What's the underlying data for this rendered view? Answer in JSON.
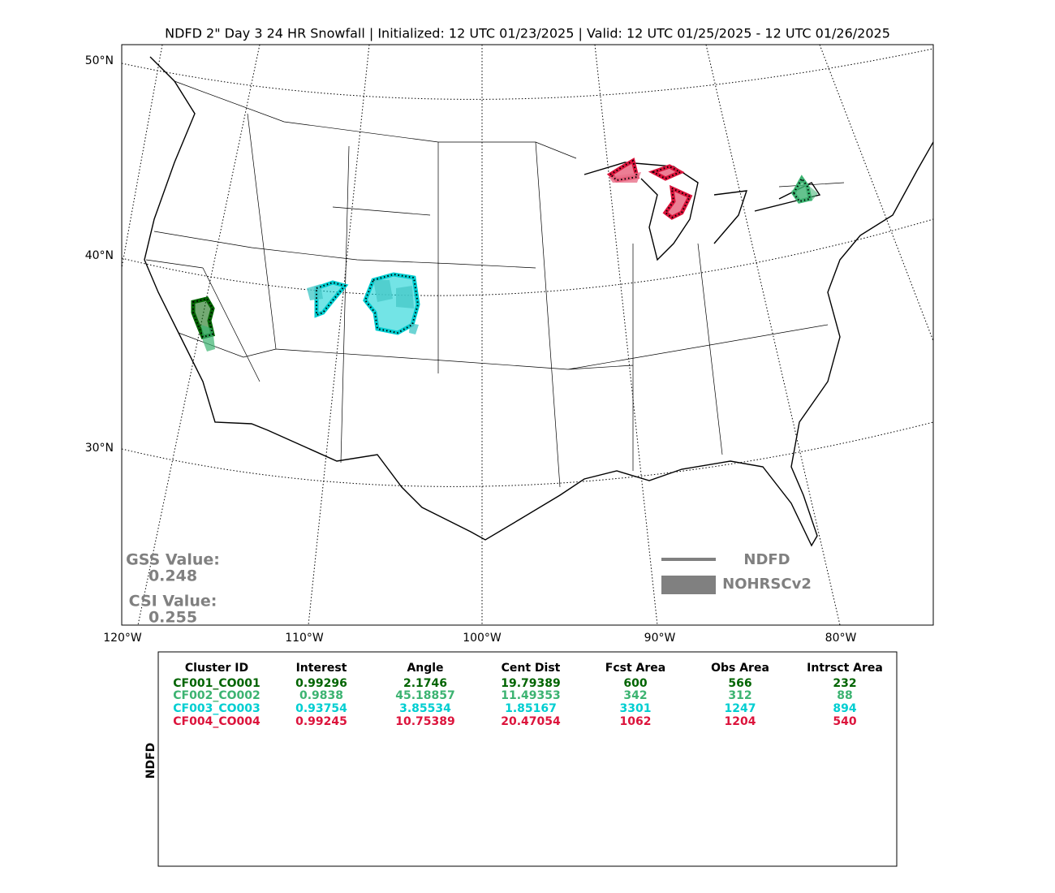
{
  "title": "NDFD 2\" Day 3 24 HR Snowfall | Initialized: 12 UTC 01/23/2025 | Valid: 12 UTC 01/25/2025 - 12 UTC 01/26/2025",
  "lat_labels": [
    "50°N",
    "40°N",
    "30°N"
  ],
  "lon_labels": [
    "120°W",
    "110°W",
    "100°W",
    "90°W",
    "80°W"
  ],
  "scores": [
    {
      "label": "GSS Value:",
      "value": 0.248
    },
    {
      "label": "CSI Value:",
      "value": 0.255
    }
  ],
  "legend": [
    "NDFD",
    "NOHRSCv2"
  ],
  "table": {
    "side_label": "NDFD",
    "header": [
      "Cluster ID",
      "Interest",
      "Angle",
      "Cent Dist",
      "Fcst Area",
      "Obs Area",
      "Intrsct Area"
    ],
    "rows": [
      [
        "CF001_CO001",
        0.99296,
        2.1746,
        19.79389,
        600,
        566,
        232
      ],
      [
        "CF002_CO002",
        0.9838,
        45.18857,
        11.49353,
        342,
        312,
        88
      ],
      [
        "CF003_CO003",
        0.93754,
        3.85534,
        1.85167,
        3301,
        1247,
        894
      ],
      [
        "CF004_CO004",
        0.99245,
        10.75389,
        20.47054,
        1062,
        1204,
        540
      ]
    ],
    "row_colors": [
      "#006400",
      "#3cb371",
      "#00ced1",
      "#dc143c"
    ]
  }
}
